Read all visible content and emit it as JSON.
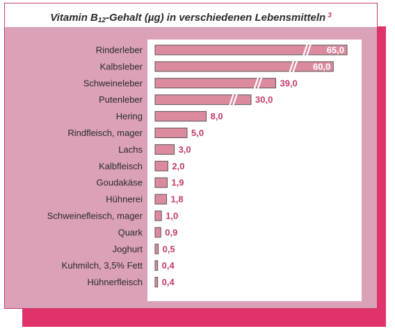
{
  "chart_data": {
    "type": "bar",
    "orientation": "horizontal",
    "title_prefix": "Vitamin B",
    "title_subscript": "12",
    "title_suffix": "-Gehalt (µg) in verschiedenen Lebensmitteln",
    "title_footnote": "3",
    "axis_break": true,
    "categories": [
      "Rinderleber",
      "Kalbsleber",
      "Schweineleber",
      "Putenleber",
      "Hering",
      "Rindfleisch, mager",
      "Lachs",
      "Kalbfleisch",
      "Goudakäse",
      "Hühnerei",
      "Schweinefleisch, mager",
      "Quark",
      "Joghurt",
      "Kuhmilch, 3,5% Fett",
      "Hühnerfleisch"
    ],
    "values": [
      65.0,
      60.0,
      39.0,
      30.0,
      8.0,
      5.0,
      3.0,
      2.0,
      1.9,
      1.8,
      1.0,
      0.9,
      0.5,
      0.4,
      0.4
    ],
    "value_labels": [
      "65,0",
      "60,0",
      "39,0",
      "30,0",
      "8,0",
      "5,0",
      "3,0",
      "2,0",
      "1,9",
      "1,8",
      "1,0",
      "0,9",
      "0,5",
      "0,4",
      "0,4"
    ],
    "colors": {
      "bar_fill": "#dc8a9e",
      "bar_stroke": "#555555",
      "value_text": "#c43a69",
      "panel": "#dba1b8",
      "accent": "#e0336a"
    }
  }
}
